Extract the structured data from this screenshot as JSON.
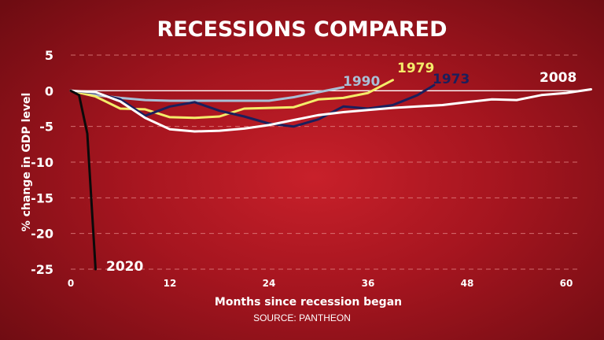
{
  "title": "RECESSIONS COMPARED",
  "source": "SOURCE: PANTHEON",
  "chart_data": {
    "type": "line",
    "title": "RECESSIONS COMPARED",
    "xlabel": "Months since recession began",
    "ylabel": "% change in GDP level",
    "xlim": [
      0,
      62
    ],
    "ylim": [
      -25,
      5
    ],
    "x_ticks": [
      "0",
      "12",
      "24",
      "36",
      "48",
      "60"
    ],
    "y_ticks": [
      "5",
      "0",
      "-5",
      "-10",
      "-15",
      "-20",
      "-25"
    ],
    "grid": "dashed horizontal",
    "series": [
      {
        "name": "1990",
        "color": "#a9bfd6",
        "x": [
          0,
          3,
          6,
          9,
          12,
          15,
          18,
          21,
          24,
          27,
          30,
          33
        ],
        "y": [
          0,
          -0.6,
          -1.0,
          -1.3,
          -1.4,
          -1.4,
          -1.4,
          -1.4,
          -1.4,
          -0.9,
          -0.2,
          0.5
        ]
      },
      {
        "name": "1979",
        "color": "#f4ec6a",
        "x": [
          0,
          3,
          6,
          9,
          12,
          15,
          18,
          21,
          24,
          27,
          30,
          33,
          36,
          39
        ],
        "y": [
          0,
          -0.8,
          -2.5,
          -2.6,
          -3.7,
          -3.8,
          -3.6,
          -2.5,
          -2.4,
          -2.3,
          -1.2,
          -1.0,
          -0.3,
          1.5
        ]
      },
      {
        "name": "1973",
        "color": "#1b1f5c",
        "x": [
          0,
          3,
          6,
          9,
          12,
          15,
          18,
          21,
          24,
          27,
          30,
          33,
          36,
          39,
          42,
          44
        ],
        "y": [
          0,
          -0.3,
          -1.2,
          -3.5,
          -2.2,
          -1.6,
          -2.8,
          -3.6,
          -4.6,
          -5.0,
          -4.0,
          -2.2,
          -2.5,
          -2.0,
          -0.6,
          0.8
        ]
      },
      {
        "name": "2008",
        "color": "#ffffff",
        "x": [
          0,
          3,
          6,
          9,
          12,
          15,
          18,
          21,
          24,
          27,
          30,
          33,
          36,
          39,
          42,
          45,
          48,
          51,
          54,
          57,
          60,
          63
        ],
        "y": [
          0,
          -0.2,
          -1.5,
          -3.8,
          -5.4,
          -5.7,
          -5.6,
          -5.3,
          -4.8,
          -4.1,
          -3.4,
          -3.0,
          -2.7,
          -2.4,
          -2.2,
          -2.0,
          -1.6,
          -1.2,
          -1.3,
          -0.6,
          -0.3,
          0.2
        ]
      },
      {
        "name": "2020",
        "color": "#0a0a0a",
        "x": [
          0,
          1,
          2,
          3
        ],
        "y": [
          0,
          -0.6,
          -6.0,
          -25.0
        ]
      }
    ]
  }
}
